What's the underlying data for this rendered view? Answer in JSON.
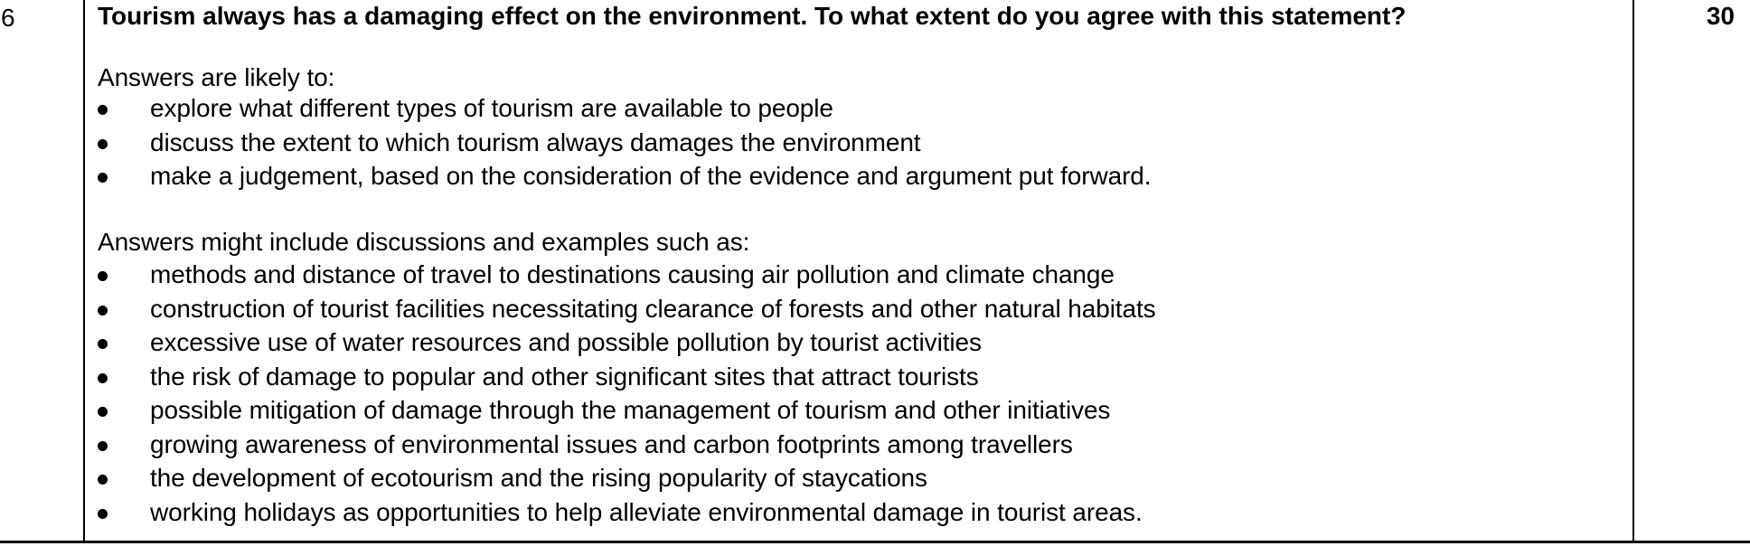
{
  "question": {
    "number": "6",
    "text": "Tourism always has a damaging effect on the environment. To what extent do you agree with this statement?",
    "marks": "30"
  },
  "likely": {
    "intro": "Answers are likely to:",
    "items": [
      "explore what different types of tourism are available to people",
      "discuss the extent to which tourism always damages the environment",
      "make a judgement, based on the consideration of the evidence and argument put forward."
    ]
  },
  "examples": {
    "intro": "Answers might include discussions and examples such as:",
    "items": [
      "methods and distance of travel to destinations causing air pollution and climate change",
      "construction of tourist facilities necessitating clearance of forests and other natural habitats",
      "excessive use of water resources and possible pollution by tourist activities",
      "the risk of damage to popular and other significant sites that attract tourists",
      "possible mitigation of damage through the management of tourism and other initiatives",
      "growing awareness of environmental issues and carbon footprints among travellers",
      "the development of ecotourism and the rising popularity of staycations",
      "working holidays as opportunities to help alleviate environmental damage in tourist areas."
    ]
  }
}
